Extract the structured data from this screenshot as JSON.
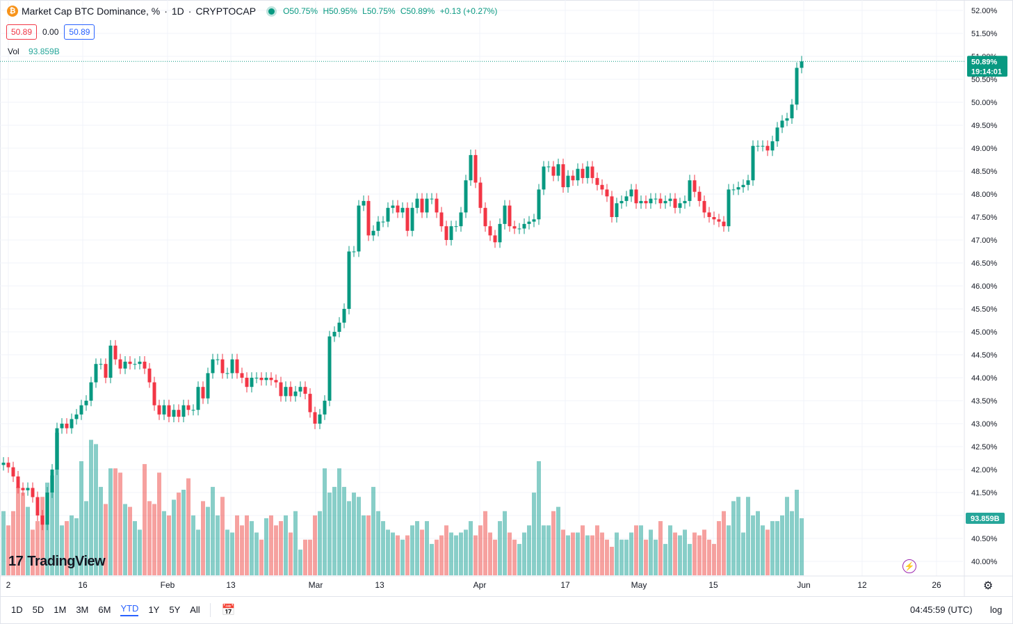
{
  "header": {
    "badge": "₿",
    "title": "Market Cap BTC Dominance, %",
    "interval": "1D",
    "exchange": "CRYPTOCAP",
    "sep": "·",
    "ohlc": {
      "open": "O50.75%",
      "high": "H50.95%",
      "low": "L50.75%",
      "close": "C50.89%",
      "change": "+0.13 (+0.27%)"
    },
    "sell_price": "50.89",
    "spread": "0.00",
    "buy_price": "50.89"
  },
  "volume_legend": {
    "label": "Vol",
    "value": "93.859B"
  },
  "brand": {
    "logo_mark": "17",
    "name": "TradingView"
  },
  "toolbar": {
    "ranges": [
      "1D",
      "5D",
      "1M",
      "3M",
      "6M",
      "YTD",
      "1Y",
      "5Y",
      "All"
    ],
    "active_range": "YTD",
    "clock": "04:45:59 (UTC)",
    "log_label": "log"
  },
  "colors": {
    "up": "#089981",
    "down": "#f23645",
    "vol_up": "#26a69a",
    "vol_down": "#ef5350",
    "last_price": "#089981",
    "grid": "#f0f3fa"
  },
  "chart_data": {
    "type": "candlestick",
    "title": "Market Cap BTC Dominance, %",
    "y_axis": {
      "ticks": [
        "52.00%",
        "51.50%",
        "51.00%",
        "50.50%",
        "50.00%",
        "49.50%",
        "49.00%",
        "48.50%",
        "48.00%",
        "47.50%",
        "47.00%",
        "46.50%",
        "46.00%",
        "45.50%",
        "45.00%",
        "44.50%",
        "44.00%",
        "43.50%",
        "43.00%",
        "42.50%",
        "42.00%",
        "41.50%",
        "41.00%",
        "40.50%",
        "40.00%"
      ],
      "range": [
        39.75,
        52.25
      ]
    },
    "x_axis": {
      "ticks": [
        "2",
        "16",
        "Feb",
        "13",
        "Mar",
        "13",
        "Apr",
        "17",
        "May",
        "15",
        "Jun",
        "12",
        "26"
      ]
    },
    "last_price_label": "50.89%",
    "countdown_label": "19:14:01",
    "volume_label": "93.859B",
    "closes": [
      42.15,
      42.05,
      41.85,
      41.6,
      41.55,
      41.6,
      41.4,
      41.0,
      40.8,
      41.5,
      42.0,
      42.9,
      43.0,
      42.9,
      43.1,
      43.2,
      43.4,
      43.5,
      43.9,
      44.3,
      44.3,
      44.0,
      44.7,
      44.4,
      44.2,
      44.35,
      44.3,
      44.3,
      44.35,
      44.2,
      43.9,
      43.4,
      43.2,
      43.4,
      43.15,
      43.3,
      43.15,
      43.4,
      43.3,
      43.3,
      43.8,
      43.55,
      44.1,
      44.4,
      44.4,
      44.1,
      44.1,
      44.4,
      44.1,
      44.0,
      43.8,
      44.0,
      44.0,
      43.95,
      44.0,
      43.95,
      43.9,
      43.6,
      43.8,
      43.6,
      43.7,
      43.8,
      43.65,
      43.25,
      43.0,
      43.2,
      43.5,
      44.9,
      45.0,
      45.2,
      45.5,
      46.75,
      46.75,
      47.75,
      47.85,
      47.1,
      47.2,
      47.4,
      47.4,
      47.7,
      47.75,
      47.6,
      47.7,
      47.2,
      47.7,
      47.9,
      47.6,
      47.9,
      47.9,
      47.6,
      47.3,
      47.0,
      47.3,
      47.3,
      47.6,
      48.3,
      48.85,
      48.25,
      47.7,
      47.3,
      47.1,
      46.95,
      47.35,
      47.75,
      47.3,
      47.25,
      47.25,
      47.35,
      47.4,
      47.45,
      48.1,
      48.6,
      48.6,
      48.4,
      48.65,
      48.15,
      48.4,
      48.3,
      48.55,
      48.35,
      48.6,
      48.35,
      48.2,
      48.1,
      47.95,
      47.5,
      47.8,
      47.85,
      47.95,
      48.1,
      47.8,
      47.85,
      47.8,
      47.9,
      47.9,
      47.8,
      47.85,
      47.9,
      47.7,
      47.8,
      47.85,
      48.3,
      48.05,
      47.85,
      47.6,
      47.5,
      47.45,
      47.4,
      47.3,
      48.1,
      48.1,
      48.15,
      48.2,
      48.3,
      49.05,
      49.05,
      49.05,
      48.95,
      49.15,
      49.45,
      49.6,
      49.65,
      49.95,
      50.75,
      50.89
    ],
    "volumes_rel": [
      0.45,
      0.35,
      0.45,
      0.62,
      0.58,
      0.48,
      0.32,
      0.38,
      0.55,
      0.65,
      0.7,
      1.0,
      0.35,
      0.38,
      0.42,
      0.4,
      0.8,
      0.52,
      0.95,
      0.92,
      0.62,
      0.5,
      0.75,
      0.75,
      0.72,
      0.5,
      0.48,
      0.38,
      0.32,
      0.78,
      0.52,
      0.5,
      0.72,
      0.45,
      0.42,
      0.53,
      0.58,
      0.6,
      0.68,
      0.42,
      0.32,
      0.52,
      0.48,
      0.62,
      0.42,
      0.55,
      0.32,
      0.3,
      0.42,
      0.35,
      0.42,
      0.38,
      0.3,
      0.25,
      0.4,
      0.42,
      0.35,
      0.38,
      0.42,
      0.3,
      0.45,
      0.18,
      0.25,
      0.25,
      0.42,
      0.45,
      0.75,
      0.58,
      0.62,
      0.75,
      0.62,
      0.52,
      0.58,
      0.55,
      0.42,
      0.42,
      0.62,
      0.45,
      0.38,
      0.32,
      0.3,
      0.28,
      0.25,
      0.28,
      0.35,
      0.38,
      0.32,
      0.38,
      0.22,
      0.25,
      0.28,
      0.35,
      0.3,
      0.28,
      0.3,
      0.32,
      0.38,
      0.28,
      0.35,
      0.45,
      0.3,
      0.25,
      0.38,
      0.45,
      0.3,
      0.25,
      0.22,
      0.3,
      0.35,
      0.58,
      0.8,
      0.35,
      0.35,
      0.45,
      0.48,
      0.32,
      0.28,
      0.3,
      0.3,
      0.35,
      0.28,
      0.28,
      0.35,
      0.3,
      0.25,
      0.2,
      0.3,
      0.25,
      0.25,
      0.3,
      0.35,
      0.35,
      0.25,
      0.32,
      0.25,
      0.38,
      0.22,
      0.35,
      0.3,
      0.28,
      0.32,
      0.22,
      0.3,
      0.28,
      0.32,
      0.25,
      0.22,
      0.38,
      0.45,
      0.35,
      0.52,
      0.55,
      0.3,
      0.55,
      0.42,
      0.45,
      0.35,
      0.32,
      0.38,
      0.38,
      0.42,
      0.55,
      0.45,
      0.6,
      0.4
    ]
  }
}
